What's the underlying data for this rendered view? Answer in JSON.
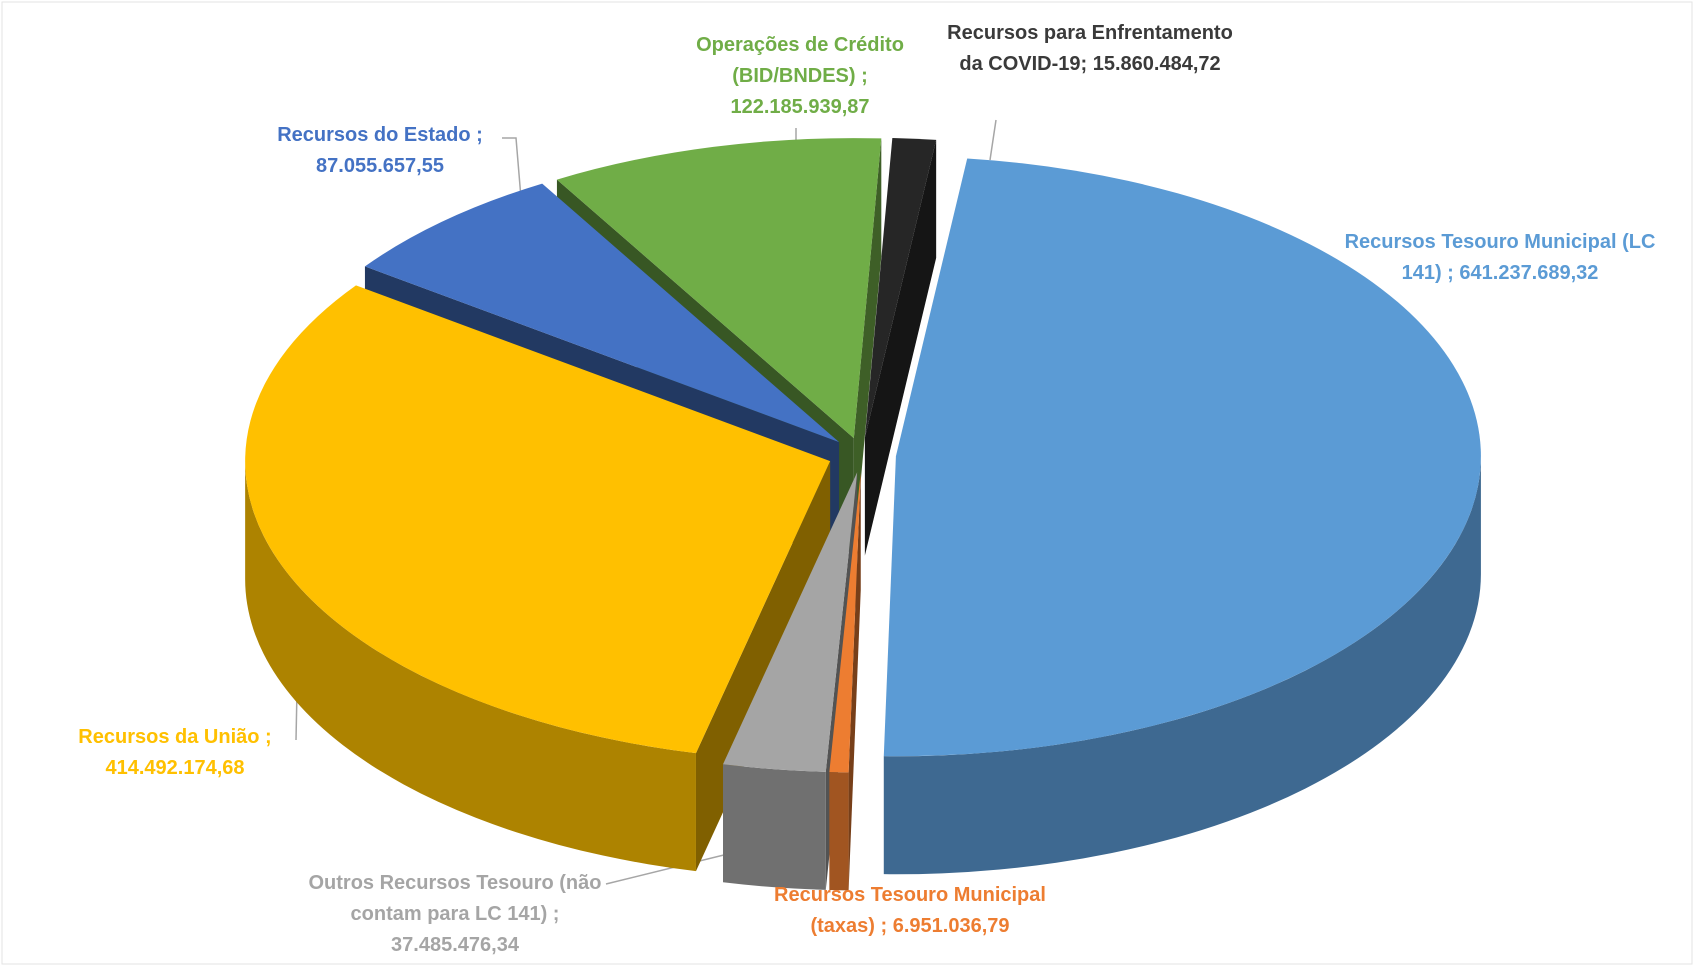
{
  "chart_data": {
    "type": "pie3d",
    "categories": [
      "Recursos Tesouro Municipal (LC 141) ;",
      "Recursos Tesouro Municipal (taxas) ;",
      "Outros Recursos Tesouro (não contam para LC 141) ;",
      "Recursos da União ;",
      "Recursos do Estado ;",
      "Operações de Crédito (BID/BNDES) ;",
      "Recursos para Enfrentamento da COVID-19;"
    ],
    "values": [
      641237689.32,
      6951036.79,
      37485476.34,
      414492174.68,
      87055657.55,
      122185939.87,
      15860484.72
    ],
    "value_labels": [
      "641.237.689,32",
      "6.951.036,79",
      "37.485.476,34",
      "414.492.174,68",
      "87.055.657,55",
      "122.185.939,87",
      "15.860.484,72"
    ],
    "colors": [
      "#5b9bd5",
      "#ed7d31",
      "#a5a5a5",
      "#ffc000",
      "#4472c4",
      "#70ad47",
      "#262626"
    ]
  }
}
